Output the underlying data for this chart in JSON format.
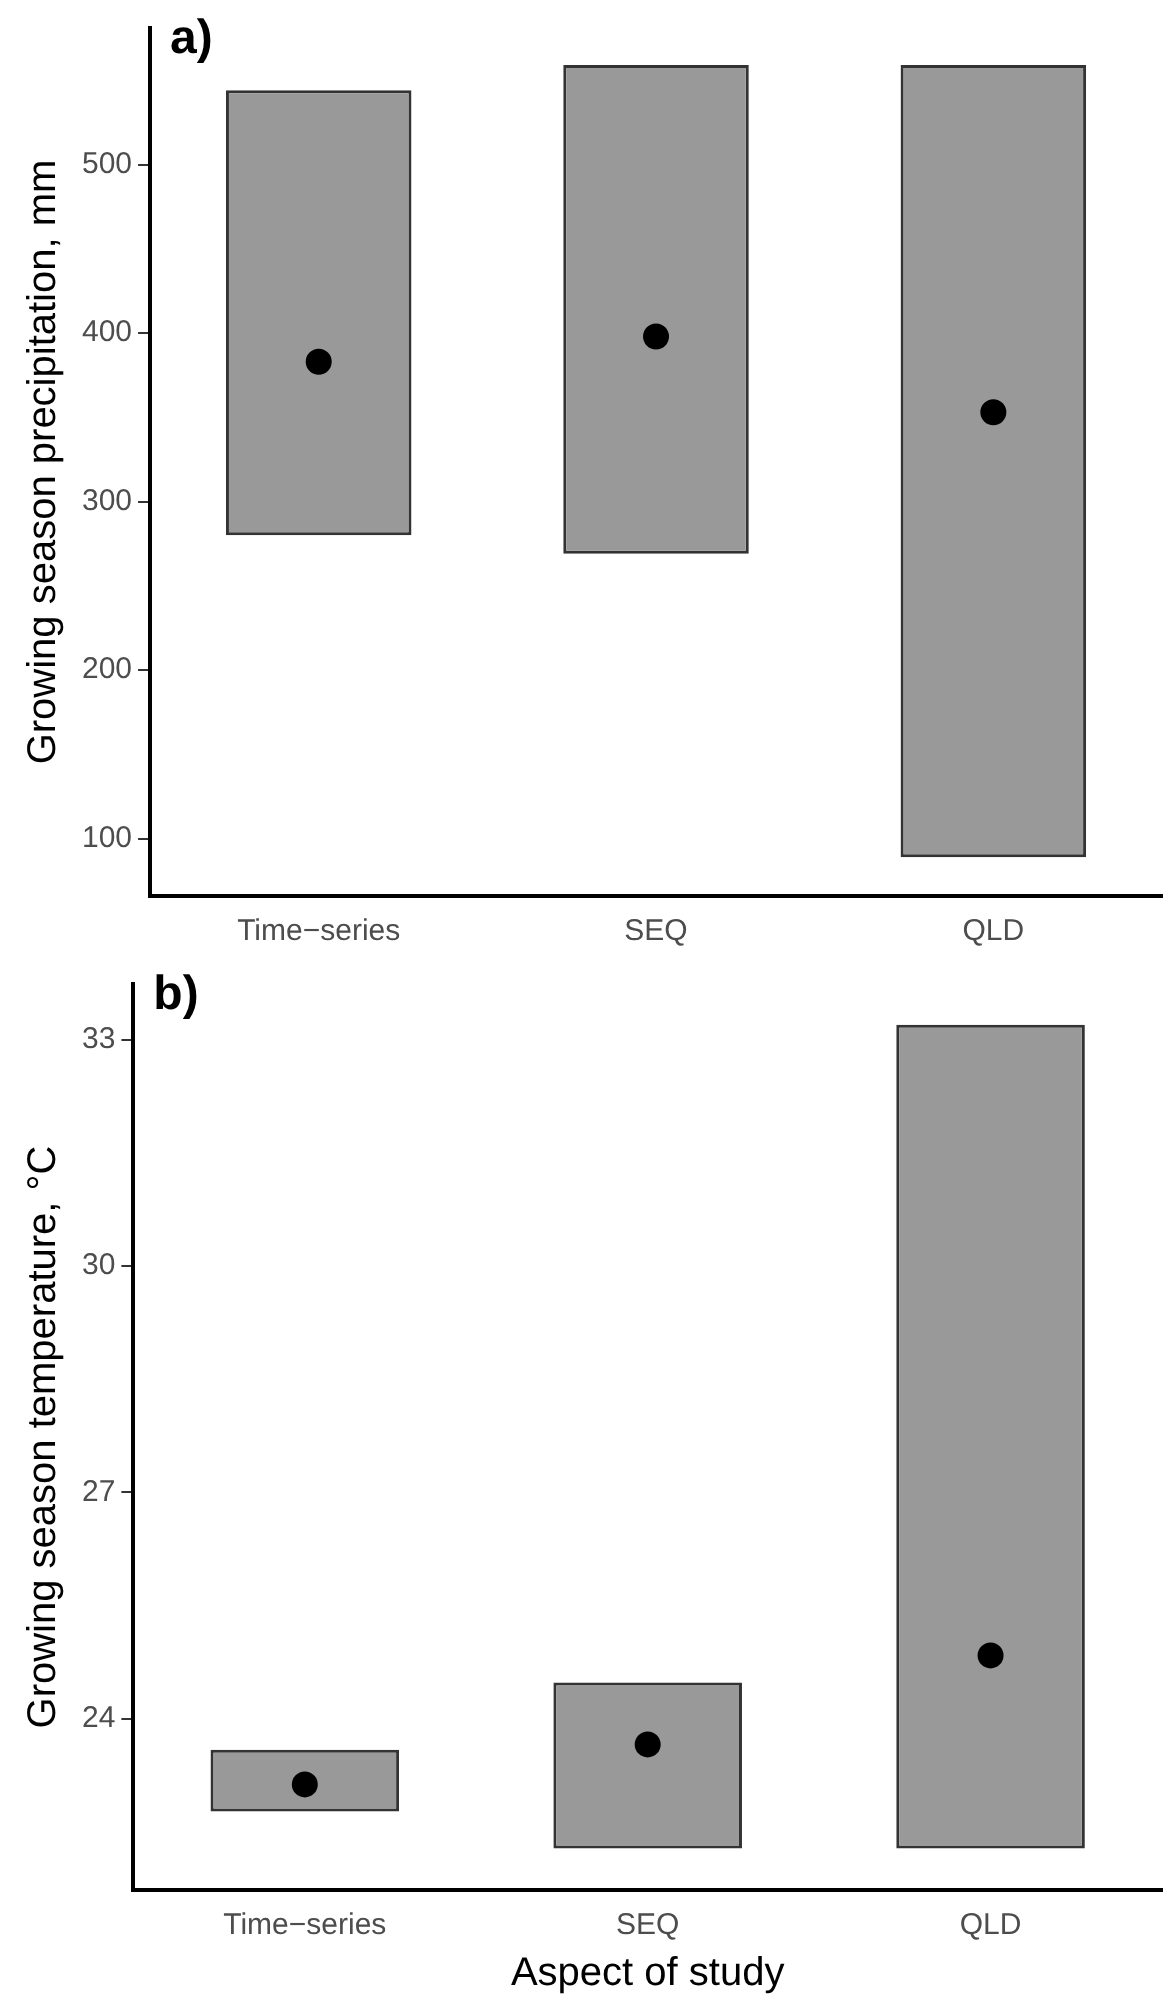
{
  "chart_data": [
    {
      "type": "bar",
      "categories": [
        "Time−series",
        "SEQ",
        "QLD"
      ],
      "ylabel": "Growing season precipitation, mm",
      "annotations": [
        "a)"
      ],
      "ylim": [
        66,
        581
      ],
      "yticks": [
        100,
        200,
        300,
        400,
        500
      ],
      "grid": false,
      "legend": false,
      "series": [
        {
          "color": "#999999",
          "base": [
            280,
            269,
            89
          ],
          "values": [
            264,
            290,
            470
          ]
        },
        {
          "type": "scatter",
          "color": "#000000",
          "marker": "circle",
          "x": [
            "Time−series",
            "SEQ",
            "QLD"
          ],
          "values": [
            383,
            398,
            353
          ]
        }
      ]
    },
    {
      "type": "bar",
      "categories": [
        "Time−series",
        "SEQ",
        "QLD"
      ],
      "xlabel": "Aspect of study",
      "ylabel": "Growing season temperature, °C",
      "annotations": [
        "b)"
      ],
      "ylim": [
        21.73,
        33.74
      ],
      "yticks": [
        24,
        27,
        30,
        33
      ],
      "grid": false,
      "legend": false,
      "series": [
        {
          "color": "#999999",
          "base": [
            22.77,
            22.28,
            22.28
          ],
          "values": [
            0.82,
            2.2,
            10.92
          ]
        },
        {
          "type": "scatter",
          "color": "#000000",
          "marker": "circle",
          "x": [
            "Time−series",
            "SEQ",
            "QLD"
          ],
          "values": [
            23.13,
            23.66,
            24.84
          ]
        }
      ]
    }
  ]
}
